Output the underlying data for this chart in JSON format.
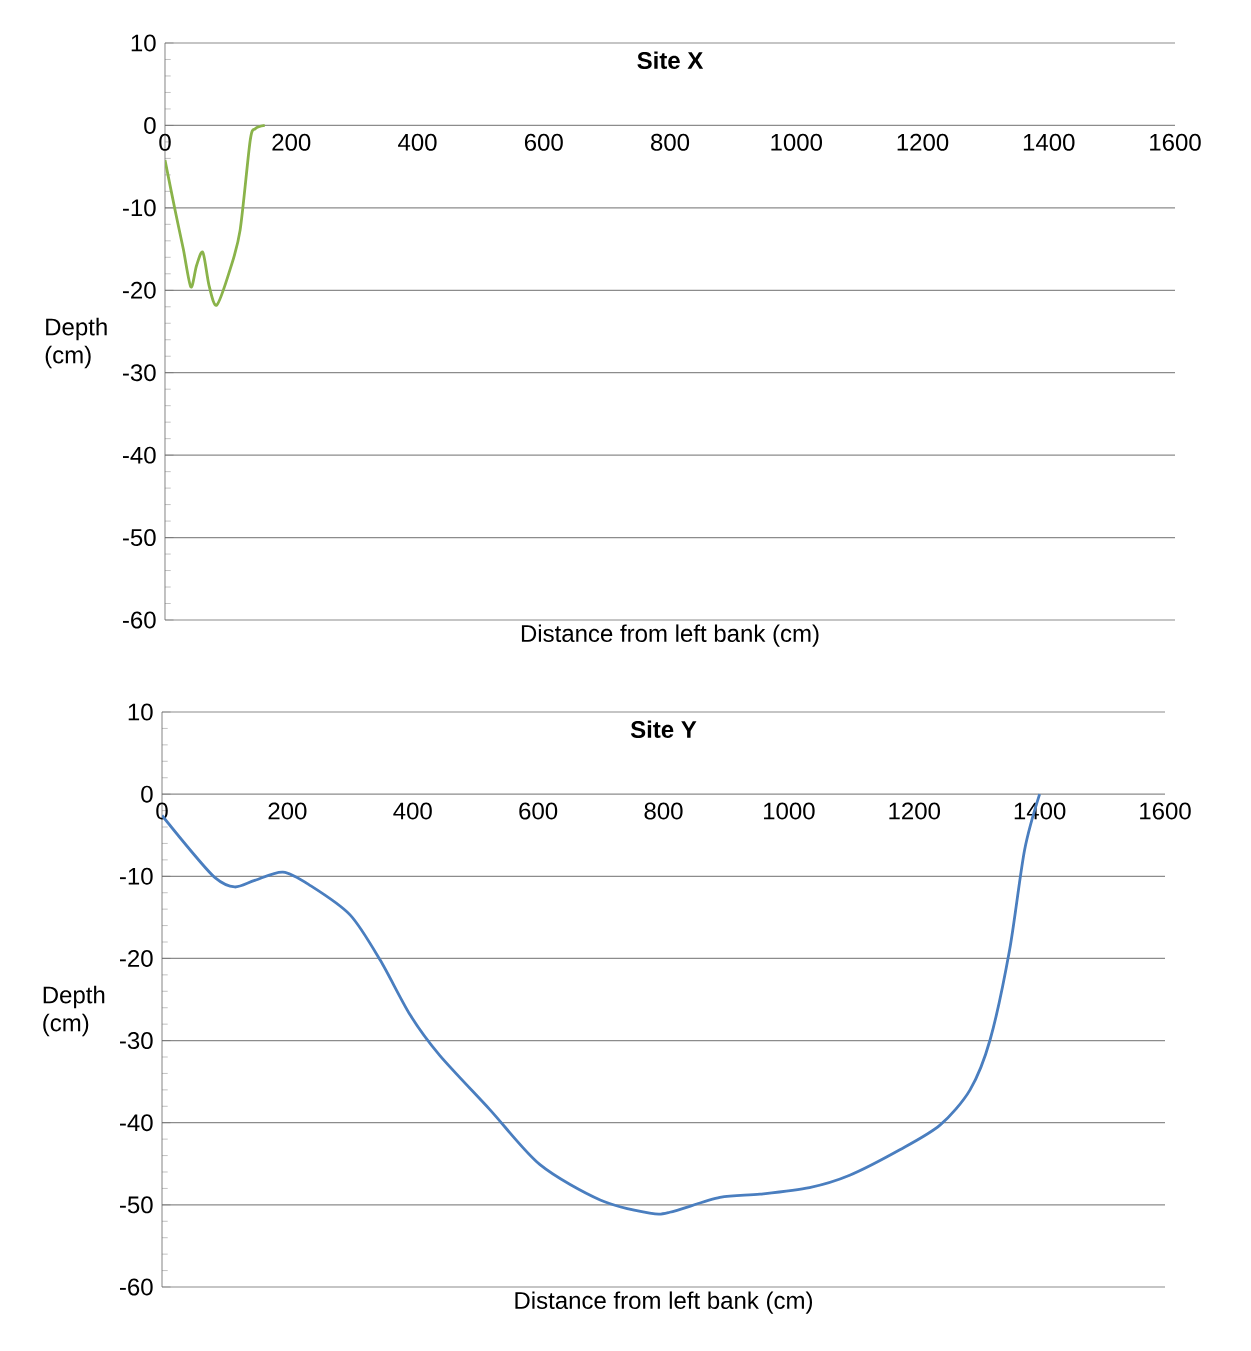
{
  "chart_data": [
    {
      "type": "line",
      "title": "Site X",
      "xlabel": "Distance from left bank (cm)",
      "ylabel": "Depth (cm)",
      "xlim": [
        0,
        1600
      ],
      "ylim": [
        -60,
        10
      ],
      "xticks": [
        0,
        200,
        400,
        600,
        800,
        1000,
        1200,
        1400,
        1600
      ],
      "yticks": [
        -60,
        -50,
        -40,
        -30,
        -20,
        -10,
        0,
        10
      ],
      "grid": "y",
      "marker": "none",
      "line_style": "solid",
      "series": [
        {
          "color": "#8ab34a",
          "x": [
            0,
            16,
            29,
            41,
            50,
            60,
            70,
            82,
            103,
            119,
            135,
            143,
            158
          ],
          "values": [
            -4.2,
            -10.3,
            -15,
            -19.6,
            -17,
            -15.4,
            -19.5,
            -21.8,
            -17.5,
            -12.7,
            -1.8,
            -0.4,
            0
          ]
        }
      ]
    },
    {
      "type": "line",
      "title": "Site Y",
      "xlabel": "Distance from left bank (cm)",
      "ylabel": "Depth (cm)",
      "xlim": [
        0,
        1600
      ],
      "ylim": [
        -60,
        10
      ],
      "xticks": [
        0,
        200,
        400,
        600,
        800,
        1000,
        1200,
        1400,
        1600
      ],
      "yticks": [
        -60,
        -50,
        -40,
        -30,
        -20,
        -10,
        0,
        10
      ],
      "grid": "y",
      "marker": "none",
      "line_style": "solid",
      "series": [
        {
          "color": "#4a7ebf",
          "x": [
            0,
            45,
            85,
            116,
            148,
            193,
            236,
            300,
            348,
            396,
            443,
            523,
            603,
            699,
            778,
            810,
            890,
            954,
            1033,
            1097,
            1177,
            1241,
            1289,
            1321,
            1352,
            1376,
            1400
          ],
          "values": [
            -2.6,
            -6.8,
            -10.2,
            -11.3,
            -10.5,
            -9.5,
            -11.1,
            -14.7,
            -20.2,
            -26.9,
            -31.8,
            -38.4,
            -45.1,
            -49.4,
            -51,
            -50.9,
            -49.1,
            -48.7,
            -47.9,
            -46.4,
            -43.3,
            -40.3,
            -36,
            -29.9,
            -19,
            -6.8,
            0
          ]
        }
      ]
    }
  ]
}
